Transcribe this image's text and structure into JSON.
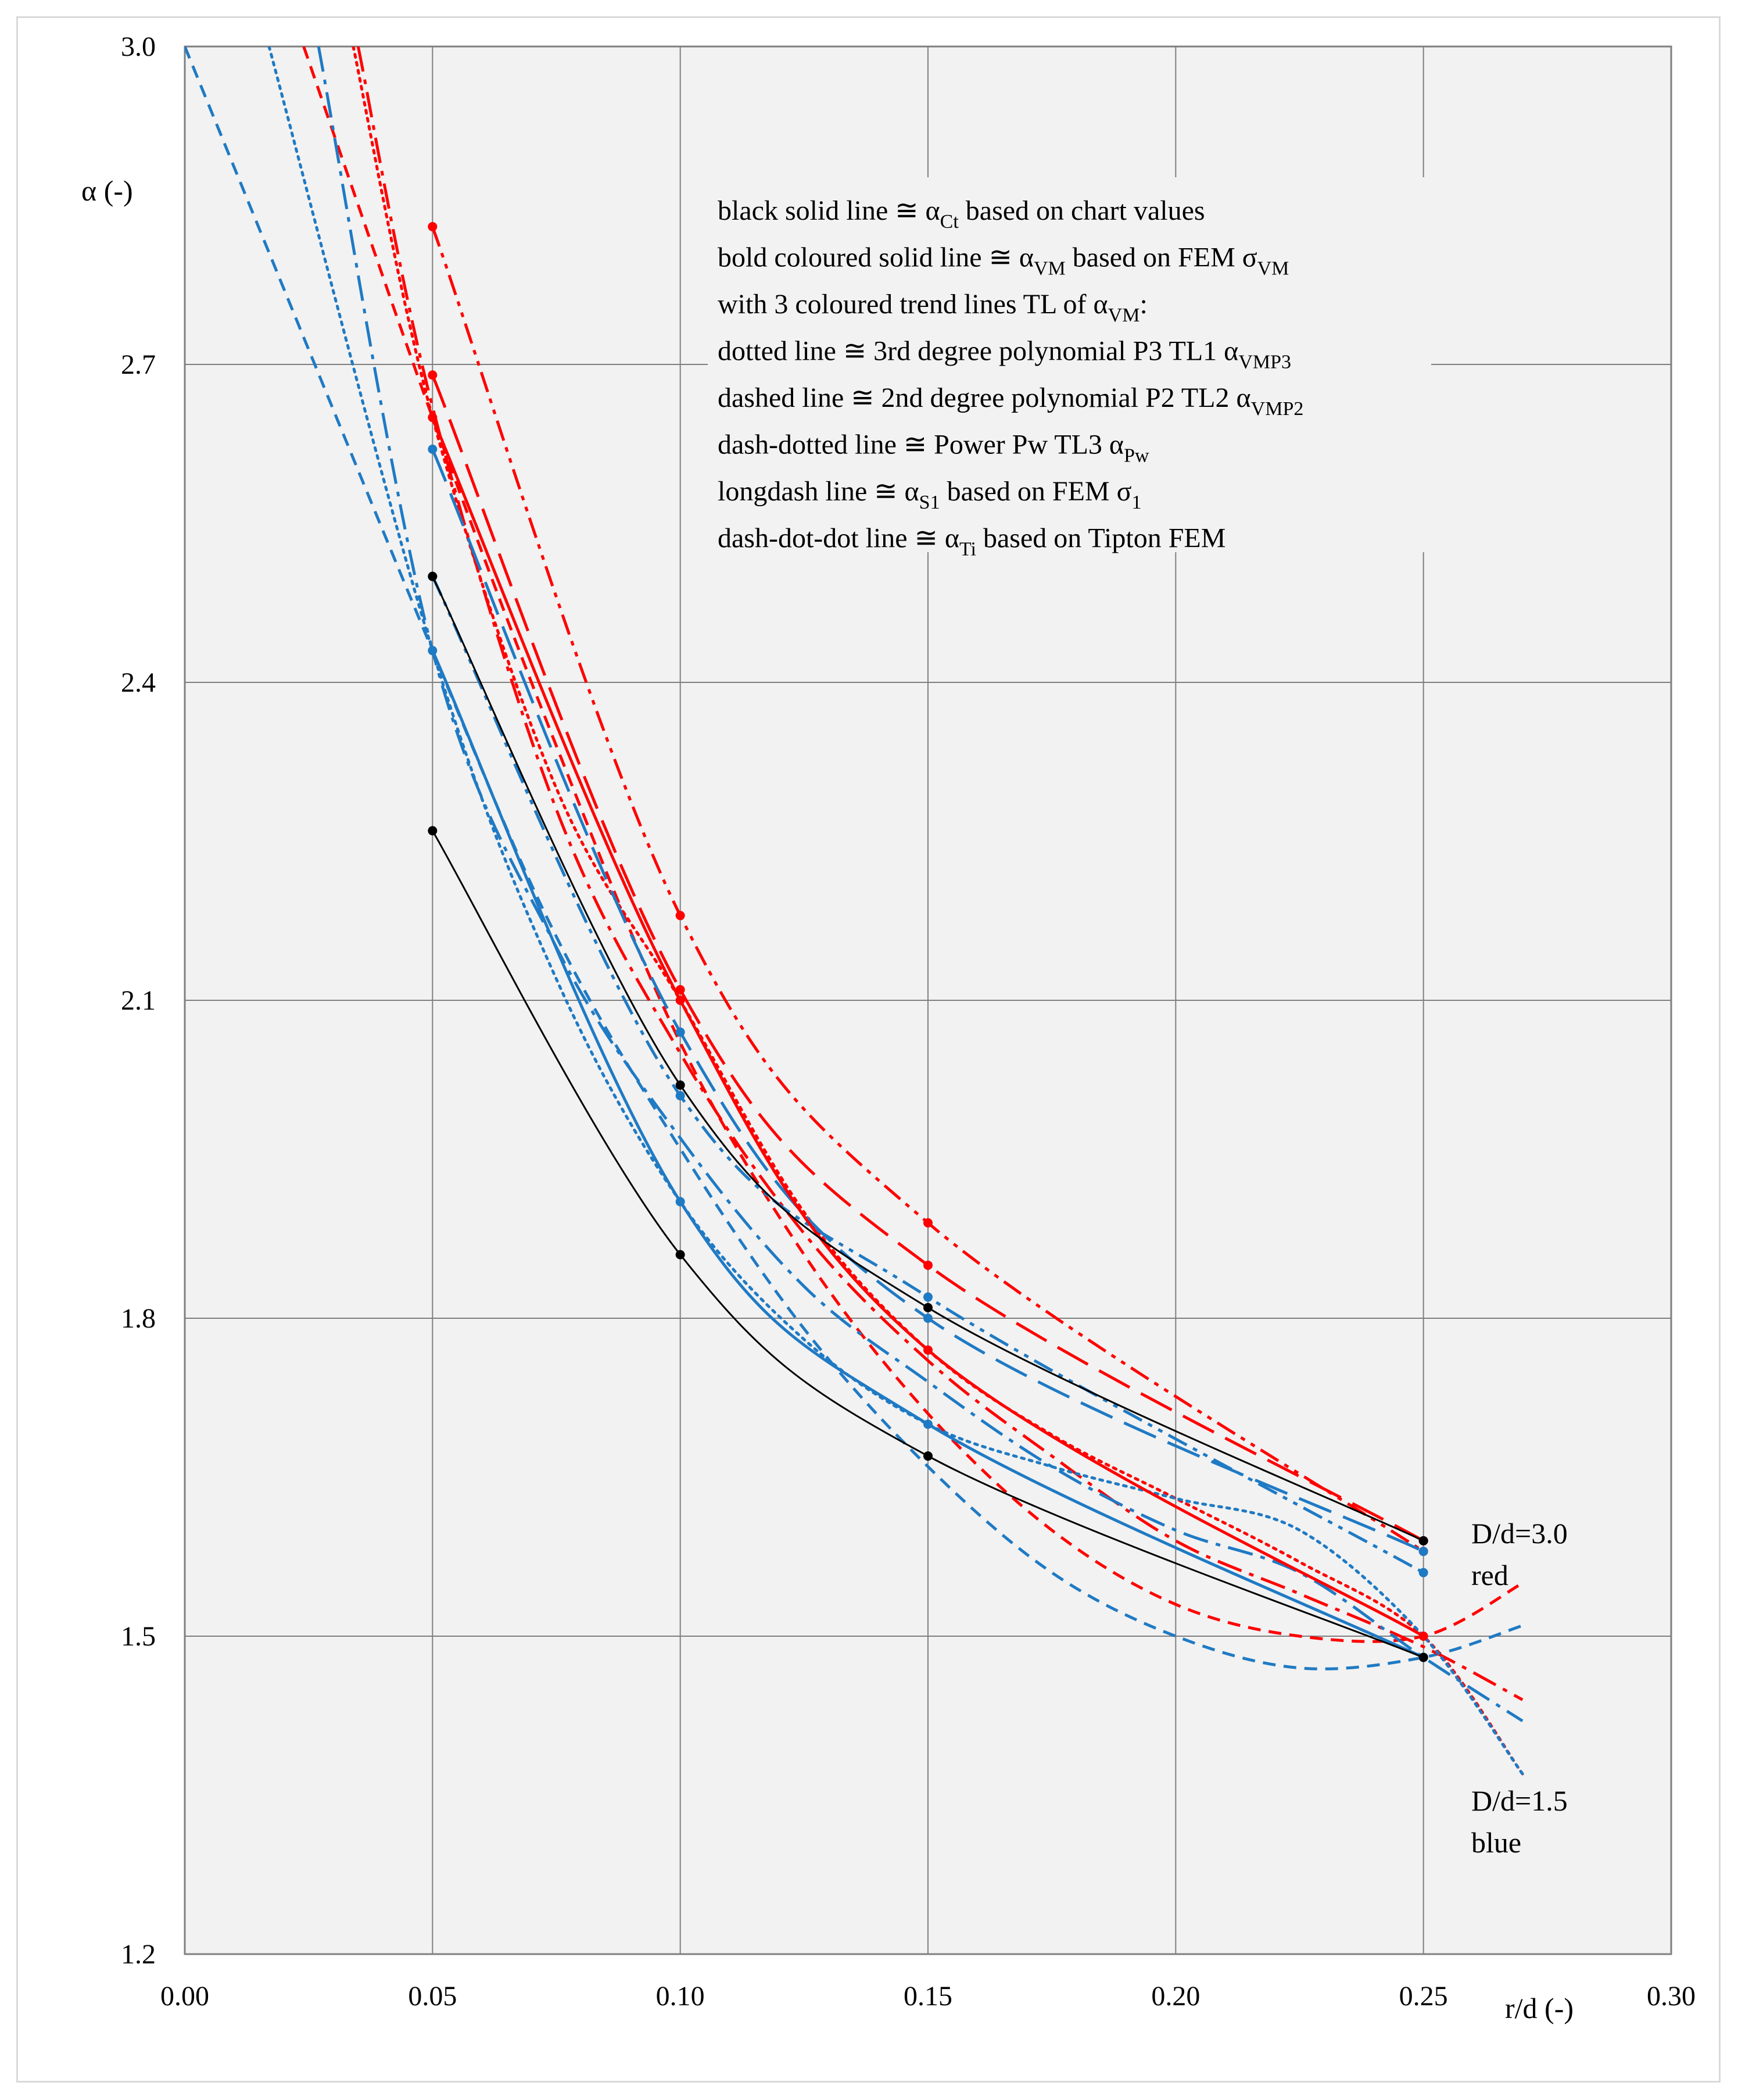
{
  "chart_data": {
    "type": "line",
    "title": "",
    "xlabel": "r/d (-)",
    "ylabel": "α (-)",
    "xlim": [
      0.0,
      0.3
    ],
    "ylim": [
      1.2,
      3.0
    ],
    "x_ticks": [
      "0.00",
      "0.05",
      "0.10",
      "0.15",
      "0.20",
      "0.25",
      "0.30"
    ],
    "y_ticks": [
      "1.2",
      "1.5",
      "1.8",
      "2.1",
      "2.4",
      "2.7",
      "3.0"
    ],
    "grid": true,
    "colors": {
      "red": "#ff0000",
      "blue": "#1f7ac4",
      "black": "#000000",
      "grid": "#7f7f7f"
    },
    "legend": {
      "lines": [
        {
          "text": "black solid line ≅ α",
          "sub": "Ct",
          "after": " based on chart values"
        },
        {
          "text": "bold coloured solid line ≅ α",
          "sub": "VM",
          "after": " based on FEM σ",
          "sub2": "VM"
        },
        {
          "text": "with 3 coloured trend lines TL of α",
          "sub": "VM",
          "after": ":"
        },
        {
          "text": "dotted line ≅ 3rd degree polynomial  P3 TL1 α",
          "sub": "VMP3",
          "after": ""
        },
        {
          "text": "dashed line ≅ 2nd degree polynomial  P2 TL2 α",
          "sub": "VMP2",
          "after": ""
        },
        {
          "text": "dash-dotted line ≅ Power Pw TL3 α",
          "sub": "Pw",
          "after": ""
        },
        {
          "text": "longdash line ≅ α",
          "sub": "S1",
          "after": " based on FEM σ",
          "sub2": "1"
        },
        {
          "text": "dash-dot-dot  line ≅ α",
          "sub": "Ti",
          "after": " based on Tipton FEM"
        }
      ]
    },
    "annotations": [
      {
        "line1": "D/d=3.0",
        "line2": "red"
      },
      {
        "line1": "D/d=1.5",
        "line2": "blue"
      }
    ],
    "series": [
      {
        "name": "α_Ct D/d=3.0",
        "color": "black",
        "style": "solid",
        "width": 3,
        "markers": true,
        "x": [
          0.05,
          0.1,
          0.15,
          0.25
        ],
        "y": [
          2.5,
          2.02,
          1.81,
          1.59
        ]
      },
      {
        "name": "α_Ct D/d=1.5",
        "color": "black",
        "style": "solid",
        "width": 3,
        "markers": true,
        "x": [
          0.05,
          0.1,
          0.15,
          0.25
        ],
        "y": [
          2.26,
          1.86,
          1.67,
          1.48
        ]
      },
      {
        "name": "α_VM D/d=3.0",
        "color": "red",
        "style": "solid",
        "width": 5,
        "markers": true,
        "x": [
          0.05,
          0.1,
          0.15,
          0.25
        ],
        "y": [
          2.65,
          2.1,
          1.77,
          1.5
        ]
      },
      {
        "name": "α_VM D/d=1.5",
        "color": "blue",
        "style": "solid",
        "width": 5,
        "markers": true,
        "x": [
          0.05,
          0.1,
          0.15,
          0.25
        ],
        "y": [
          2.43,
          1.91,
          1.7,
          1.48
        ]
      },
      {
        "name": "α_S1 D/d=3.0",
        "color": "red",
        "style": "longdash",
        "width": 5,
        "markers": true,
        "x": [
          0.05,
          0.1,
          0.15,
          0.25
        ],
        "y": [
          2.69,
          2.11,
          1.85,
          1.59
        ]
      },
      {
        "name": "α_S1 D/d=1.5",
        "color": "blue",
        "style": "longdash",
        "width": 5,
        "markers": true,
        "x": [
          0.05,
          0.1,
          0.15,
          0.25
        ],
        "y": [
          2.62,
          2.07,
          1.8,
          1.58
        ]
      },
      {
        "name": "α_Ti D/d=3.0",
        "color": "red",
        "style": "dashdotdot",
        "width": 5,
        "markers": true,
        "x": [
          0.05,
          0.1,
          0.15,
          0.25
        ],
        "y": [
          2.83,
          2.18,
          1.89,
          1.58
        ]
      },
      {
        "name": "α_Ti D/d=1.5",
        "color": "blue",
        "style": "dashdotdot",
        "width": 5,
        "markers": true,
        "x": [
          0.05,
          0.1,
          0.15,
          0.25
        ],
        "y": [
          2.5,
          2.01,
          1.82,
          1.56
        ]
      },
      {
        "name": "α_VMP3 D/d=3.0",
        "color": "red",
        "style": "dotted",
        "width": 5,
        "markers": false,
        "x": [
          0.034,
          0.05,
          0.075,
          0.1,
          0.125,
          0.15,
          0.175,
          0.2,
          0.225,
          0.25,
          0.27
        ],
        "y": [
          3.0,
          2.65,
          2.3,
          2.1,
          1.9,
          1.77,
          1.69,
          1.63,
          1.57,
          1.5,
          1.37
        ]
      },
      {
        "name": "α_VMP3 D/d=1.5",
        "color": "blue",
        "style": "dotted",
        "width": 5,
        "markers": false,
        "x": [
          0.017,
          0.05,
          0.075,
          0.1,
          0.125,
          0.15,
          0.175,
          0.2,
          0.225,
          0.25,
          0.27
        ],
        "y": [
          3.0,
          2.43,
          2.12,
          1.91,
          1.78,
          1.7,
          1.66,
          1.63,
          1.6,
          1.5,
          1.37
        ]
      },
      {
        "name": "α_VMP2 D/d=3.0",
        "color": "red",
        "style": "dashed",
        "width": 5,
        "markers": false,
        "x": [
          0.024,
          0.05,
          0.075,
          0.1,
          0.125,
          0.15,
          0.175,
          0.2,
          0.225,
          0.25,
          0.27
        ],
        "y": [
          3.0,
          2.65,
          2.34,
          2.06,
          1.86,
          1.71,
          1.6,
          1.53,
          1.5,
          1.5,
          1.55
        ]
      },
      {
        "name": "α_VMP2 D/d=1.5",
        "color": "blue",
        "style": "dashed",
        "width": 5,
        "markers": false,
        "x": [
          0.0,
          0.05,
          0.075,
          0.1,
          0.125,
          0.15,
          0.175,
          0.2,
          0.225,
          0.25,
          0.27
        ],
        "y": [
          3.0,
          2.43,
          2.16,
          1.96,
          1.79,
          1.66,
          1.56,
          1.5,
          1.47,
          1.48,
          1.51
        ]
      },
      {
        "name": "α_Pw D/d=3.0",
        "color": "red",
        "style": "dashdot",
        "width": 5,
        "markers": false,
        "x": [
          0.035,
          0.05,
          0.075,
          0.1,
          0.125,
          0.15,
          0.175,
          0.2,
          0.225,
          0.25,
          0.27
        ],
        "y": [
          3.0,
          2.66,
          2.28,
          2.05,
          1.88,
          1.76,
          1.67,
          1.59,
          1.54,
          1.49,
          1.44
        ]
      },
      {
        "name": "α_Pw D/d=1.5",
        "color": "blue",
        "style": "dashdot",
        "width": 5,
        "markers": false,
        "x": [
          0.027,
          0.05,
          0.075,
          0.1,
          0.125,
          0.15,
          0.175,
          0.2,
          0.225,
          0.25,
          0.27
        ],
        "y": [
          3.0,
          2.43,
          2.15,
          1.97,
          1.83,
          1.74,
          1.66,
          1.6,
          1.56,
          1.48,
          1.42
        ]
      }
    ]
  }
}
